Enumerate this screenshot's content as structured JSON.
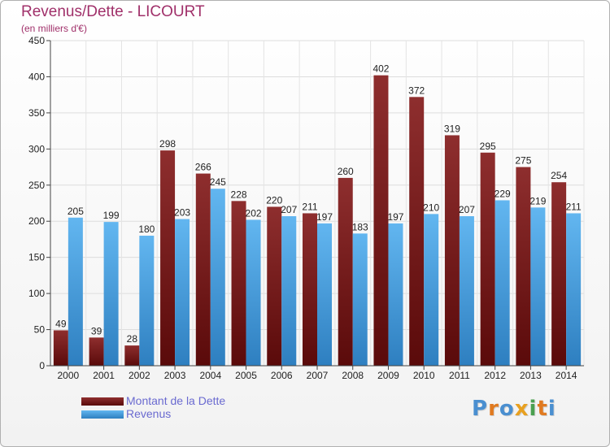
{
  "chart_data": {
    "type": "bar",
    "title": "Revenus/Dette - LICOURT",
    "subtitle": "(en milliers d'€)",
    "categories": [
      "2000",
      "2001",
      "2002",
      "2003",
      "2004",
      "2005",
      "2006",
      "2007",
      "2008",
      "2009",
      "2010",
      "2011",
      "2012",
      "2013",
      "2014"
    ],
    "series": [
      {
        "name": "Montant de la Dette",
        "color": "#7a1a1a",
        "values": [
          49,
          39,
          28,
          298,
          266,
          228,
          220,
          211,
          260,
          402,
          372,
          319,
          295,
          275,
          254
        ]
      },
      {
        "name": "Revenus",
        "color": "#4aa3e0",
        "values": [
          205,
          199,
          180,
          203,
          245,
          202,
          207,
          197,
          183,
          197,
          210,
          207,
          229,
          219,
          211
        ]
      }
    ],
    "yticks": [
      0,
      50,
      100,
      150,
      200,
      250,
      300,
      350,
      400,
      450
    ],
    "ylim": [
      0,
      450
    ],
    "grid": true,
    "legend": "bottom-left"
  },
  "logo": {
    "letters": [
      {
        "ch": "P",
        "color": "#4a8fd0"
      },
      {
        "ch": "r",
        "color": "#e07a20"
      },
      {
        "ch": "o",
        "color": "#4a8fd0"
      },
      {
        "ch": "x",
        "color": "#e8a020"
      },
      {
        "ch": "i",
        "color": "#4aa050"
      },
      {
        "ch": "t",
        "color": "#e07a20"
      },
      {
        "ch": "i",
        "color": "#4a8fd0"
      }
    ]
  }
}
